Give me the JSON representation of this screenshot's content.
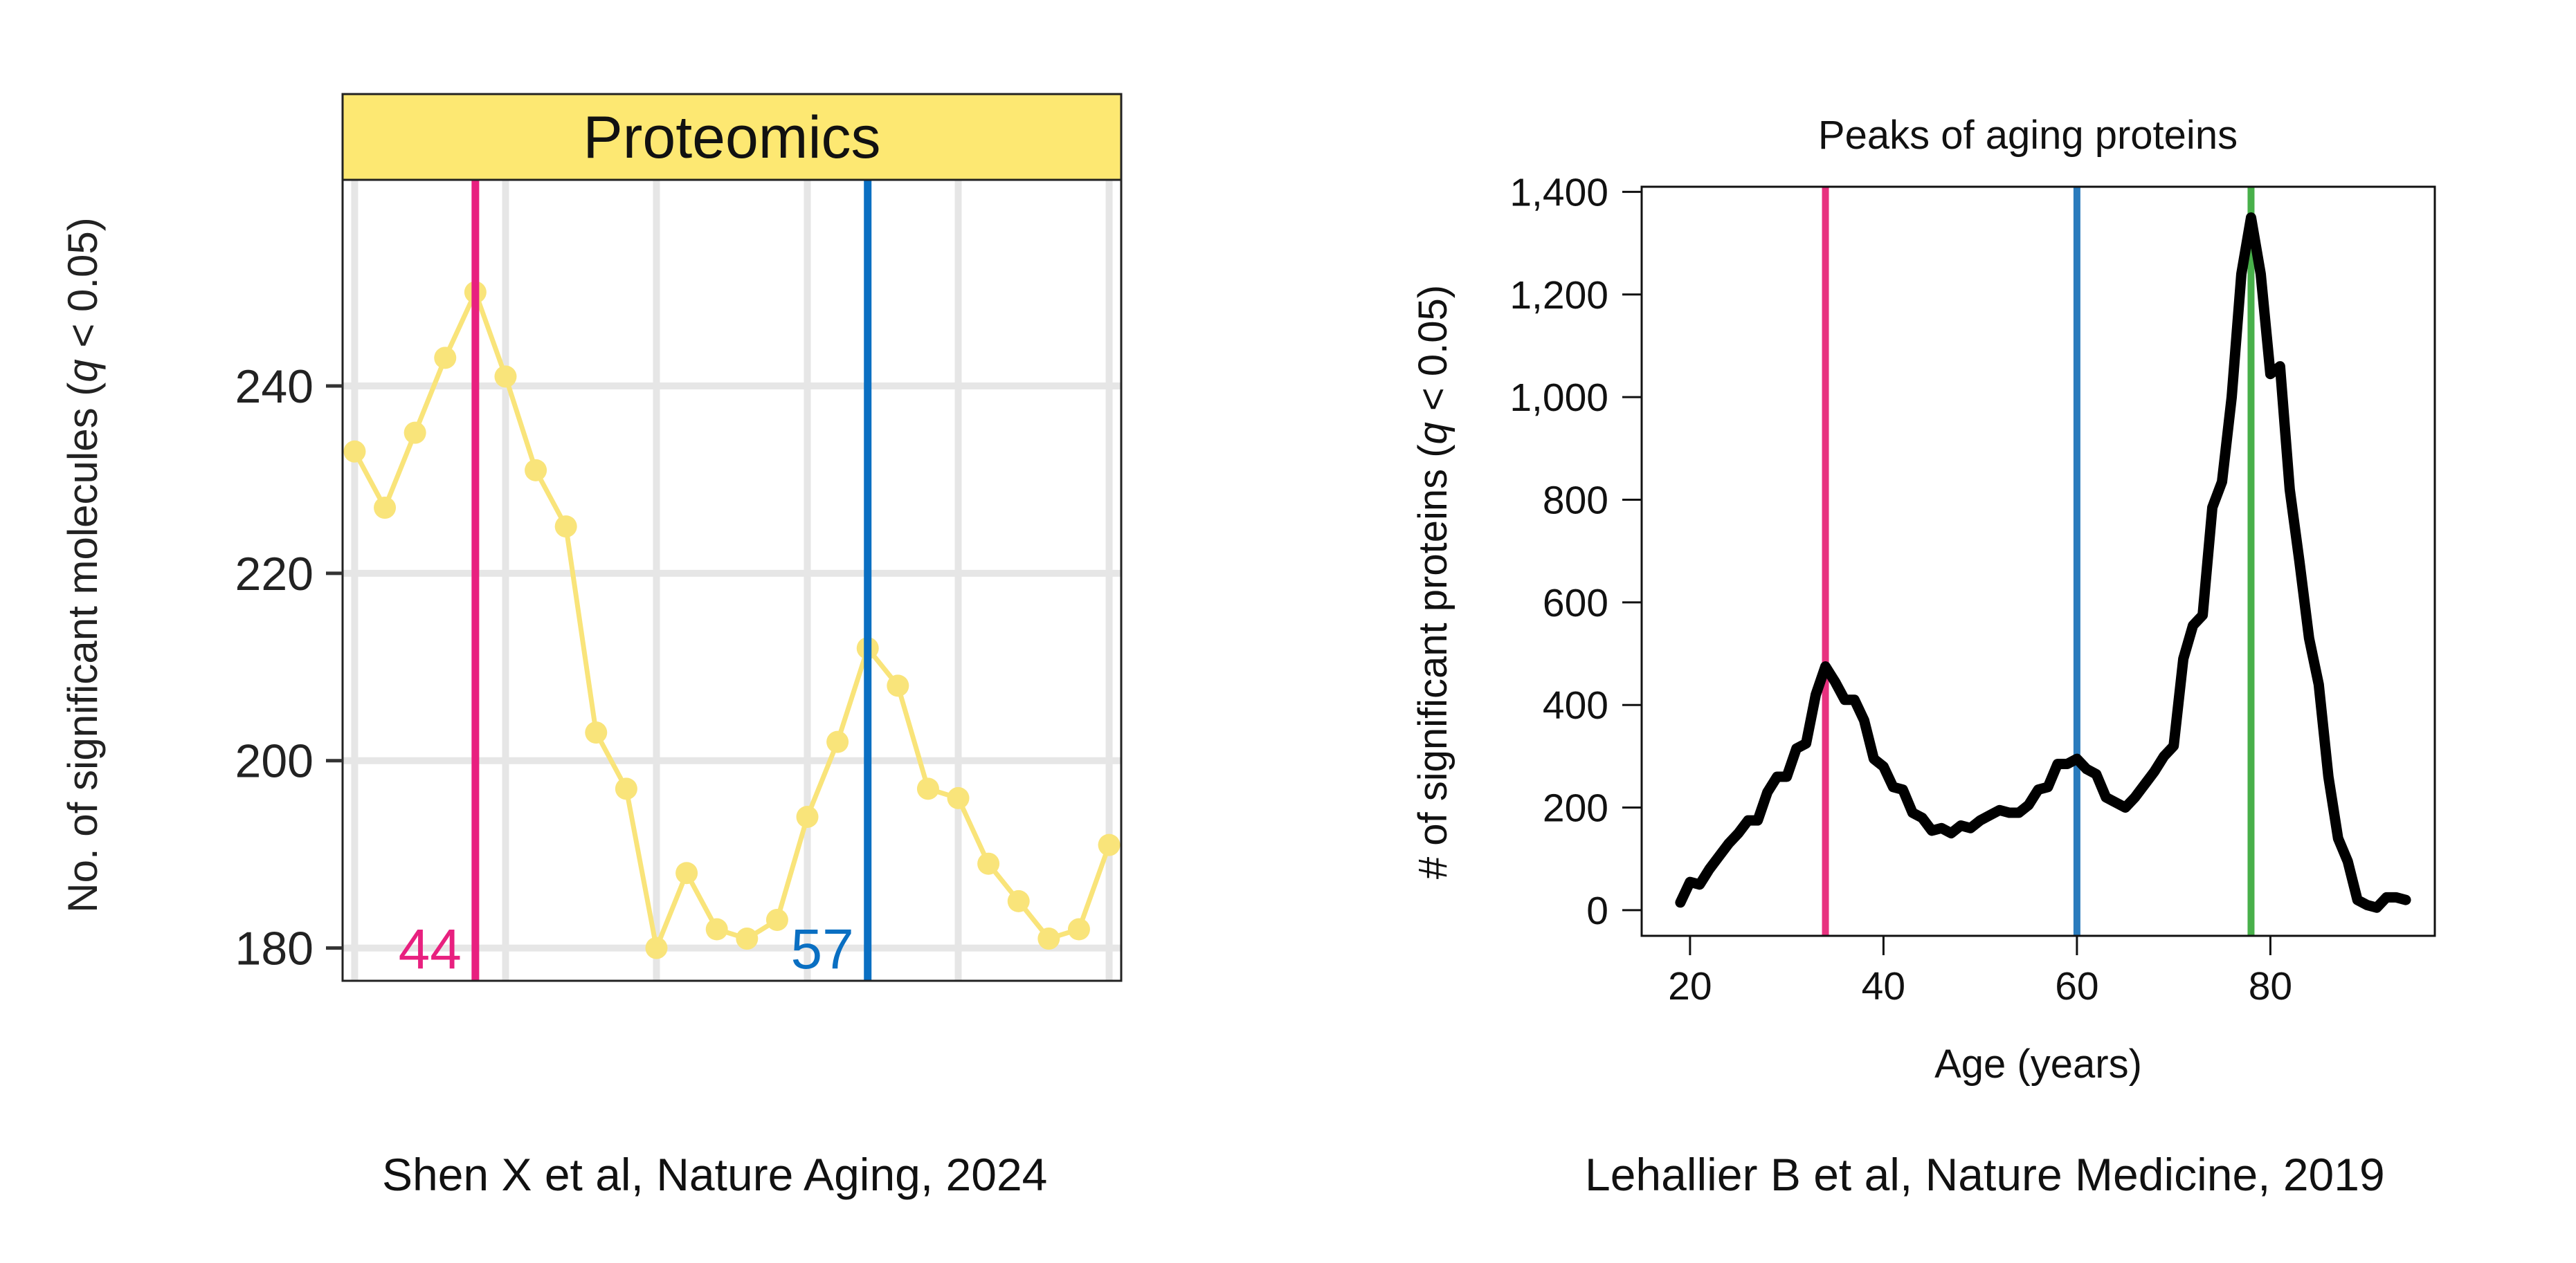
{
  "chart_data": [
    {
      "type": "line",
      "title": "Proteomics",
      "xlabel": "",
      "ylabel": "No. of significant molecules (q < 0.05)",
      "ylabel_parts": [
        "No. of significant molecules (",
        "q",
        " < 0.05)"
      ],
      "x": [
        40,
        41,
        42,
        43,
        44,
        45,
        46,
        47,
        48,
        49,
        50,
        51,
        52,
        53,
        54,
        55,
        56,
        57,
        58,
        59,
        60,
        61,
        62,
        63,
        64,
        65
      ],
      "values": [
        233,
        227,
        235,
        243,
        250,
        241,
        231,
        225,
        203,
        197,
        180,
        188,
        182,
        181,
        183,
        194,
        202,
        212,
        208,
        197,
        196,
        189,
        185,
        181,
        182,
        191
      ],
      "xlim": [
        39.6,
        65.4
      ],
      "ylim": [
        176.5,
        262
      ],
      "yticks": [
        180,
        200,
        220,
        240
      ],
      "xgrid": [
        40,
        45,
        50,
        55,
        60,
        65
      ],
      "grid": true,
      "vlines": [
        {
          "x": 44,
          "label": "44",
          "color": "#e8207f"
        },
        {
          "x": 57,
          "label": "57",
          "color": "#0a6fc2"
        }
      ],
      "line_color": "#f9e47a",
      "title_bg": "#fde872",
      "source": "Shen X et al, Nature Aging, 2024"
    },
    {
      "type": "line",
      "title": "Peaks of aging proteins",
      "xlabel": "Age (years)",
      "ylabel": "# of significant proteins (q < 0.05)",
      "ylabel_parts": [
        "# of significant proteins (",
        "q",
        " < 0.05)"
      ],
      "x": [
        19,
        20,
        21,
        22,
        23,
        24,
        25,
        26,
        27,
        28,
        29,
        30,
        31,
        32,
        33,
        34,
        35,
        36,
        37,
        38,
        39,
        40,
        41,
        42,
        43,
        44,
        45,
        46,
        47,
        48,
        49,
        50,
        51,
        52,
        53,
        54,
        55,
        56,
        57,
        58,
        59,
        60,
        61,
        62,
        63,
        64,
        65,
        66,
        67,
        68,
        69,
        70,
        71,
        72,
        73,
        74,
        75,
        76,
        77,
        78,
        79,
        80,
        81,
        82,
        83,
        84,
        85,
        86,
        87,
        88,
        89,
        90,
        91,
        92,
        93,
        94
      ],
      "values": [
        15,
        55,
        50,
        80,
        105,
        130,
        150,
        175,
        175,
        230,
        260,
        260,
        315,
        325,
        420,
        475,
        445,
        410,
        410,
        370,
        295,
        280,
        240,
        235,
        190,
        180,
        155,
        160,
        150,
        165,
        160,
        175,
        185,
        195,
        190,
        190,
        205,
        235,
        240,
        285,
        285,
        295,
        275,
        265,
        220,
        210,
        200,
        220,
        245,
        270,
        300,
        320,
        490,
        555,
        575,
        785,
        835,
        1000,
        1240,
        1350,
        1240,
        1045,
        1060,
        820,
        680,
        530,
        440,
        260,
        140,
        95,
        20,
        10,
        5,
        25,
        25,
        20
      ],
      "xlim": [
        15,
        97
      ],
      "ylim": [
        -50,
        1410
      ],
      "xticks": [
        20,
        40,
        60,
        80
      ],
      "xtick_labels": [
        "20",
        "40",
        "60",
        "80"
      ],
      "yticks": [
        0,
        200,
        400,
        600,
        800,
        1000,
        1200,
        1400
      ],
      "ytick_labels": [
        "0",
        "200",
        "400",
        "600",
        "800",
        "1,000",
        "1,200",
        "1,400"
      ],
      "vlines": [
        {
          "x": 34,
          "color": "#e8317f"
        },
        {
          "x": 60,
          "color": "#2a7bbd"
        },
        {
          "x": 78,
          "color": "#48b04a"
        }
      ],
      "line_color": "#000000",
      "source": "Lehallier B et al, Nature Medicine, 2019"
    }
  ]
}
